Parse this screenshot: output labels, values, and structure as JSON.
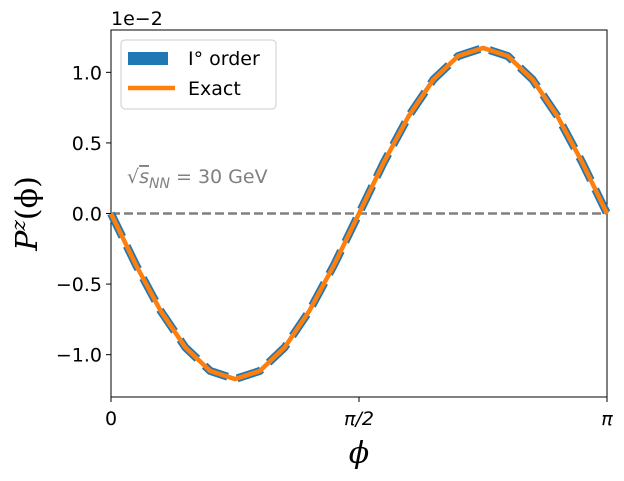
{
  "chart_data": {
    "type": "line",
    "xlabel": "ϕ",
    "ylabel": "P^z(ϕ)",
    "ylabel_main": "P",
    "ylabel_sup": "z",
    "ylabel_arg": "(ϕ)",
    "y_scale_note": "1e−2",
    "xlim": [
      0,
      3.14159
    ],
    "ylim": [
      -1.3,
      1.3
    ],
    "x_ticks": [
      {
        "value": 0,
        "label": "0"
      },
      {
        "value": 1.5708,
        "label": "π/2"
      },
      {
        "value": 3.14159,
        "label": "π"
      }
    ],
    "y_ticks": [
      {
        "value": 1.0,
        "label": "1.0"
      },
      {
        "value": 0.5,
        "label": "0.5"
      },
      {
        "value": 0.0,
        "label": "0.0"
      },
      {
        "value": -0.5,
        "label": "−0.5"
      },
      {
        "value": -1.0,
        "label": "−1.0"
      }
    ],
    "annotation": {
      "prefix": "√",
      "radicand": "s",
      "subscript": "NN",
      "suffix": " = 30 GeV"
    },
    "legend_position": "upper-left",
    "zero_line": {
      "y": 0,
      "style": "dashed",
      "color": "#808080"
    },
    "series": [
      {
        "name": "I° order",
        "color": "#1f77b4",
        "style": "dashed",
        "x": [
          0,
          0.1571,
          0.3142,
          0.4712,
          0.6283,
          0.7854,
          0.9425,
          1.0996,
          1.2566,
          1.4137,
          1.5708,
          1.7279,
          1.885,
          2.042,
          2.1991,
          2.3562,
          2.5133,
          2.6704,
          2.8274,
          2.9845,
          3.1416
        ],
        "y": [
          0,
          -0.3624,
          -0.6894,
          -0.9489,
          -1.1155,
          -1.1729,
          -1.1155,
          -0.9489,
          -0.6894,
          -0.3624,
          0,
          0.3624,
          0.6894,
          0.9489,
          1.1155,
          1.1729,
          1.1155,
          0.9489,
          0.6894,
          0.3624,
          0
        ]
      },
      {
        "name": "Exact",
        "color": "#ff7f0e",
        "style": "solid",
        "x": [
          0,
          0.1571,
          0.3142,
          0.4712,
          0.6283,
          0.7854,
          0.9425,
          1.0996,
          1.2566,
          1.4137,
          1.5708,
          1.7279,
          1.885,
          2.042,
          2.1991,
          2.3562,
          2.5133,
          2.6704,
          2.8274,
          2.9845,
          3.1416
        ],
        "y": [
          0,
          -0.3624,
          -0.6894,
          -0.9489,
          -1.1155,
          -1.1729,
          -1.1155,
          -0.9489,
          -0.6894,
          -0.3624,
          0,
          0.3624,
          0.6894,
          0.9489,
          1.1155,
          1.1729,
          1.1155,
          0.9489,
          0.6894,
          0.3624,
          0
        ]
      }
    ]
  }
}
